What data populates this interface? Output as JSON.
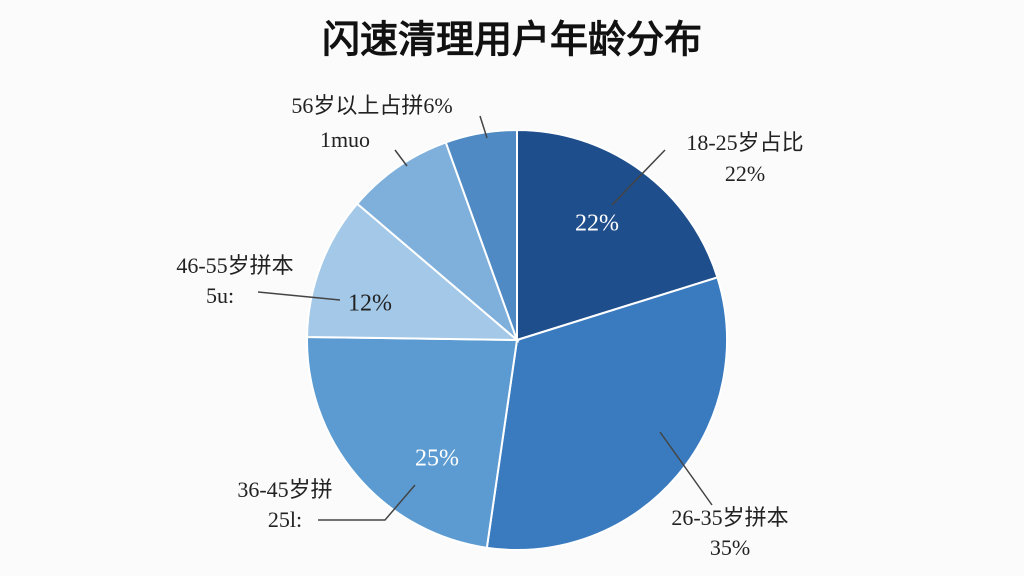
{
  "chart_data": {
    "type": "pie",
    "title": "闪速清理用户年龄分布",
    "categories": [
      "18-25岁占比",
      "26-35岁拼本",
      "36-45岁拼",
      "46-55岁拼本",
      null,
      "56岁以上占拼6%"
    ],
    "values": [
      22,
      35,
      25,
      12,
      9,
      6
    ],
    "value_labels": [
      "22%",
      null,
      "25%",
      "12%",
      null,
      null
    ],
    "sublabels": [
      "22%",
      "35%",
      "25l:",
      "5u:",
      null,
      "1muo"
    ],
    "colors": [
      "#1f4e8c",
      "#3a7bbf",
      "#5c9bd1",
      "#a3c8e8",
      "#7fb0dc",
      "#4f8ac4"
    ]
  }
}
